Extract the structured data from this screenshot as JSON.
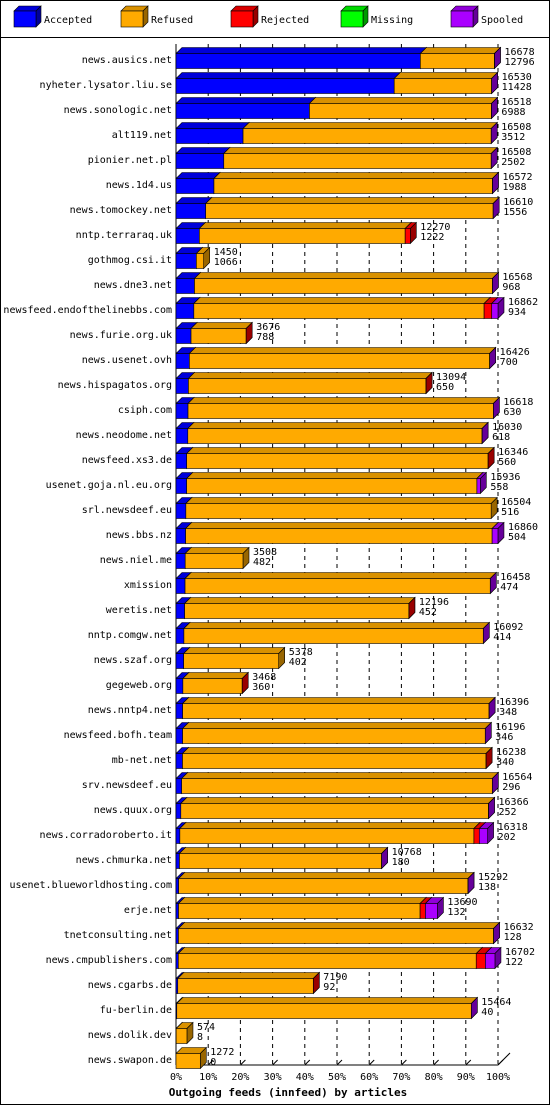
{
  "chart_data": {
    "type": "bar",
    "orientation": "horizontal",
    "stacked": true,
    "xlabel": "Outgoing feeds (innfeed) by articles",
    "xlim": [
      0,
      100
    ],
    "x_unit": "%",
    "x_ticks": [
      "0%",
      "10%",
      "20%",
      "30%",
      "40%",
      "50%",
      "60%",
      "70%",
      "80%",
      "90%",
      "100%"
    ],
    "grid": "vertical dashed",
    "legend_position": "top",
    "series": [
      {
        "name": "Accepted",
        "color": "#0000ff"
      },
      {
        "name": "Refused",
        "color": "#ffaa00"
      },
      {
        "name": "Rejected",
        "color": "#ff0000"
      },
      {
        "name": "Missing",
        "color": "#00ff00"
      },
      {
        "name": "Spooled",
        "color": "#aa00ff"
      }
    ],
    "rows": [
      {
        "name": "news.ausics.net",
        "total": 16678,
        "accepted": 12796,
        "refused": 3882,
        "rejected": 0,
        "missing": 0,
        "spooled": 1
      },
      {
        "name": "nyheter.lysator.liu.se",
        "total": 16530,
        "accepted": 11428,
        "refused": 5102,
        "rejected": 0,
        "missing": 0,
        "spooled": 1
      },
      {
        "name": "news.sonologic.net",
        "total": 16518,
        "accepted": 6988,
        "refused": 9530,
        "rejected": 0,
        "missing": 0,
        "spooled": 1
      },
      {
        "name": "alt119.net",
        "total": 16508,
        "accepted": 3512,
        "refused": 12996,
        "rejected": 0,
        "missing": 0,
        "spooled": 1
      },
      {
        "name": "pionier.net.pl",
        "total": 16508,
        "accepted": 2502,
        "refused": 14006,
        "rejected": 0,
        "missing": 0,
        "spooled": 1
      },
      {
        "name": "news.1d4.us",
        "total": 16572,
        "accepted": 1988,
        "refused": 14584,
        "rejected": 0,
        "missing": 0,
        "spooled": 1
      },
      {
        "name": "news.tomockey.net",
        "total": 16610,
        "accepted": 1556,
        "refused": 15054,
        "rejected": 0,
        "missing": 0,
        "spooled": 1
      },
      {
        "name": "nntp.terraraq.uk",
        "total": 12270,
        "accepted": 1222,
        "refused": 10778,
        "rejected": 270,
        "missing": 0,
        "spooled": 0
      },
      {
        "name": "gothmog.csi.it",
        "total": 1450,
        "accepted": 1066,
        "refused": 384,
        "rejected": 0,
        "missing": 0,
        "spooled": 0
      },
      {
        "name": "news.dne3.net",
        "total": 16568,
        "accepted": 968,
        "refused": 15600,
        "rejected": 0,
        "missing": 0,
        "spooled": 1
      },
      {
        "name": "newsfeed.endofthelinebbs.com",
        "total": 16862,
        "accepted": 934,
        "refused": 15200,
        "rejected": 400,
        "missing": 0,
        "spooled": 328
      },
      {
        "name": "news.furie.org.uk",
        "total": 3676,
        "accepted": 788,
        "refused": 2888,
        "rejected": 1,
        "missing": 0,
        "spooled": 0
      },
      {
        "name": "news.usenet.ovh",
        "total": 16426,
        "accepted": 700,
        "refused": 15726,
        "rejected": 0,
        "missing": 0,
        "spooled": 1
      },
      {
        "name": "news.hispagatos.org",
        "total": 13094,
        "accepted": 650,
        "refused": 12444,
        "rejected": 1,
        "missing": 0,
        "spooled": 0
      },
      {
        "name": "csiph.com",
        "total": 16618,
        "accepted": 630,
        "refused": 15988,
        "rejected": 0,
        "missing": 0,
        "spooled": 1
      },
      {
        "name": "news.neodome.net",
        "total": 16030,
        "accepted": 618,
        "refused": 15412,
        "rejected": 0,
        "missing": 0,
        "spooled": 1
      },
      {
        "name": "newsfeed.xs3.de",
        "total": 16346,
        "accepted": 560,
        "refused": 15786,
        "rejected": 1,
        "missing": 0,
        "spooled": 0
      },
      {
        "name": "usenet.goja.nl.eu.org",
        "total": 15936,
        "accepted": 558,
        "refused": 15200,
        "rejected": 0,
        "missing": 0,
        "spooled": 178
      },
      {
        "name": "srl.newsdeef.eu",
        "total": 16504,
        "accepted": 516,
        "refused": 15988,
        "rejected": 0,
        "missing": 0,
        "spooled": 0
      },
      {
        "name": "news.bbs.nz",
        "total": 16860,
        "accepted": 504,
        "refused": 16050,
        "rejected": 0,
        "missing": 0,
        "spooled": 306
      },
      {
        "name": "news.niel.me",
        "total": 3508,
        "accepted": 482,
        "refused": 3026,
        "rejected": 0,
        "missing": 0,
        "spooled": 0
      },
      {
        "name": "xmission",
        "total": 16458,
        "accepted": 474,
        "refused": 15984,
        "rejected": 0,
        "missing": 0,
        "spooled": 1
      },
      {
        "name": "weretis.net",
        "total": 12196,
        "accepted": 452,
        "refused": 11744,
        "rejected": 1,
        "missing": 0,
        "spooled": 0
      },
      {
        "name": "nntp.comgw.net",
        "total": 16092,
        "accepted": 414,
        "refused": 15678,
        "rejected": 0,
        "missing": 0,
        "spooled": 1
      },
      {
        "name": "news.szaf.org",
        "total": 5378,
        "accepted": 402,
        "refused": 4976,
        "rejected": 0,
        "missing": 0,
        "spooled": 0
      },
      {
        "name": "gegeweb.org",
        "total": 3468,
        "accepted": 360,
        "refused": 3108,
        "rejected": 1,
        "missing": 0,
        "spooled": 0
      },
      {
        "name": "news.nntp4.net",
        "total": 16396,
        "accepted": 348,
        "refused": 16048,
        "rejected": 0,
        "missing": 0,
        "spooled": 1
      },
      {
        "name": "newsfeed.bofh.team",
        "total": 16196,
        "accepted": 346,
        "refused": 15850,
        "rejected": 0,
        "missing": 0,
        "spooled": 1
      },
      {
        "name": "mb-net.net",
        "total": 16238,
        "accepted": 340,
        "refused": 15898,
        "rejected": 1,
        "missing": 0,
        "spooled": 0
      },
      {
        "name": "srv.newsdeef.eu",
        "total": 16564,
        "accepted": 296,
        "refused": 16268,
        "rejected": 0,
        "missing": 0,
        "spooled": 1
      },
      {
        "name": "news.quux.org",
        "total": 16366,
        "accepted": 252,
        "refused": 16114,
        "rejected": 0,
        "missing": 0,
        "spooled": 1
      },
      {
        "name": "news.corradoroberto.it",
        "total": 16318,
        "accepted": 202,
        "refused": 15400,
        "rejected": 280,
        "missing": 0,
        "spooled": 436
      },
      {
        "name": "news.chmurka.net",
        "total": 10768,
        "accepted": 180,
        "refused": 10588,
        "rejected": 0,
        "missing": 0,
        "spooled": 1
      },
      {
        "name": "usenet.blueworldhosting.com",
        "total": 15292,
        "accepted": 138,
        "refused": 15154,
        "rejected": 0,
        "missing": 0,
        "spooled": 1
      },
      {
        "name": "erje.net",
        "total": 13690,
        "accepted": 132,
        "refused": 12650,
        "rejected": 280,
        "missing": 0,
        "spooled": 628
      },
      {
        "name": "tnetconsulting.net",
        "total": 16632,
        "accepted": 128,
        "refused": 16504,
        "rejected": 0,
        "missing": 0,
        "spooled": 1
      },
      {
        "name": "news.cmpublishers.com",
        "total": 16702,
        "accepted": 122,
        "refused": 15600,
        "rejected": 480,
        "missing": 0,
        "spooled": 500
      },
      {
        "name": "news.cgarbs.de",
        "total": 7190,
        "accepted": 92,
        "refused": 7098,
        "rejected": 1,
        "missing": 0,
        "spooled": 0
      },
      {
        "name": "fu-berlin.de",
        "total": 15464,
        "accepted": 40,
        "refused": 15424,
        "rejected": 0,
        "missing": 0,
        "spooled": 1
      },
      {
        "name": "news.dolik.dev",
        "total": 574,
        "accepted": 8,
        "refused": 566,
        "rejected": 0,
        "missing": 0,
        "spooled": 0
      },
      {
        "name": "news.swapon.de",
        "total": 1272,
        "accepted": 0,
        "refused": 1272,
        "rejected": 0,
        "missing": 0,
        "spooled": 0
      }
    ]
  }
}
